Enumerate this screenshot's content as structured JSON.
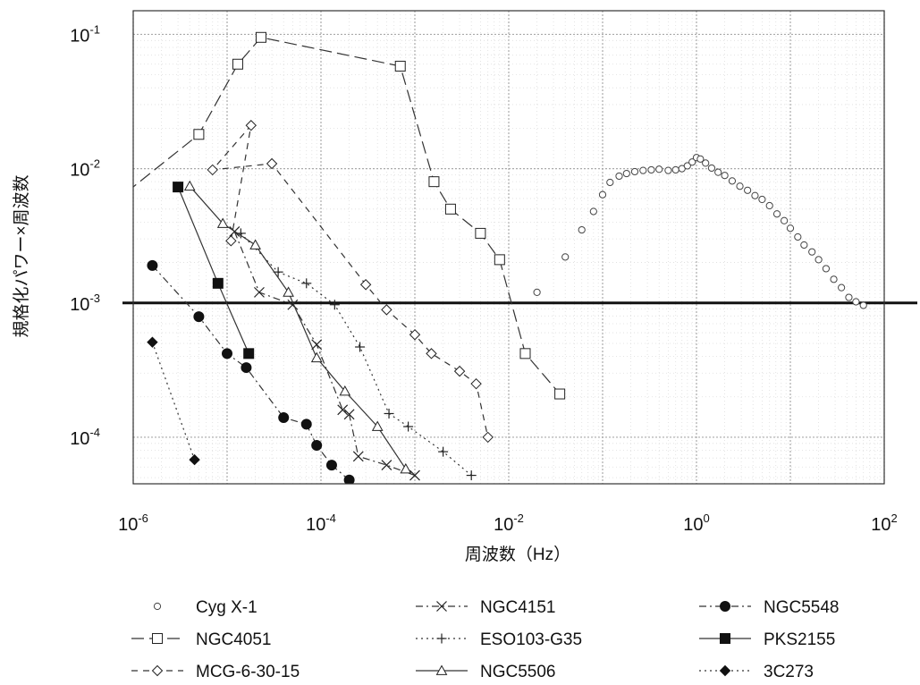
{
  "chart_data": {
    "type": "scatter",
    "title": "",
    "xlabel": "周波数（Hz）",
    "ylabel": "規格化パワー×周波数",
    "xscale": "log",
    "yscale": "log",
    "xlim": [
      1e-06,
      100
    ],
    "ylim": [
      4.5e-05,
      0.15
    ],
    "grid": true,
    "legend_position": "bottom",
    "reference_line": {
      "y": 0.001
    },
    "x_ticks": [
      {
        "value": 1e-06,
        "base": "10",
        "exp": "-6"
      },
      {
        "value": 0.0001,
        "base": "10",
        "exp": "-4"
      },
      {
        "value": 0.01,
        "base": "10",
        "exp": "-2"
      },
      {
        "value": 1,
        "base": "10",
        "exp": "0"
      },
      {
        "value": 100,
        "base": "10",
        "exp": "2"
      }
    ],
    "y_ticks": [
      {
        "value": 0.1,
        "base": "10",
        "exp": "-1"
      },
      {
        "value": 0.01,
        "base": "10",
        "exp": "-2"
      },
      {
        "value": 0.001,
        "base": "10",
        "exp": "-3"
      },
      {
        "value": 0.0001,
        "base": "10",
        "exp": "-4"
      }
    ],
    "series": [
      {
        "name": "Cyg X-1",
        "marker": "circle-open-small",
        "line": "none",
        "x": [
          0.02,
          0.04,
          0.06,
          0.08,
          0.1,
          0.12,
          0.15,
          0.18,
          0.22,
          0.27,
          0.33,
          0.4,
          0.5,
          0.6,
          0.7,
          0.8,
          0.9,
          1.0,
          1.1,
          1.25,
          1.45,
          1.7,
          2.0,
          2.4,
          2.9,
          3.5,
          4.2,
          5.0,
          6.0,
          7.2,
          8.6,
          10,
          12,
          14,
          17,
          20,
          24,
          29,
          35,
          42,
          50,
          60
        ],
        "y": [
          0.0012,
          0.0022,
          0.0035,
          0.0048,
          0.0064,
          0.0079,
          0.0088,
          0.0092,
          0.0095,
          0.0097,
          0.0098,
          0.0099,
          0.0097,
          0.0098,
          0.01,
          0.0105,
          0.0112,
          0.0121,
          0.0118,
          0.011,
          0.0101,
          0.0094,
          0.0089,
          0.0081,
          0.0074,
          0.0069,
          0.0063,
          0.0059,
          0.0053,
          0.0046,
          0.0041,
          0.0036,
          0.0031,
          0.0027,
          0.0024,
          0.0021,
          0.0018,
          0.0015,
          0.0013,
          0.0011,
          0.00102,
          0.00096
        ]
      },
      {
        "name": "NGC4051",
        "marker": "square-open",
        "line": "longdash",
        "x": [
          6e-07,
          3e-06,
          5e-06,
          1.3e-05,
          1.7e-05,
          6e-05,
          0.0002,
          0.0007,
          0.0035
        ],
        "y": [
          0.0055,
          0.018,
          0.06,
          0.095,
          0.058,
          0.008,
          0.005,
          0.0033,
          0.00021
        ],
        "segments": [
          {
            "x": [
              6e-07,
              3e-06,
              5e-06,
              1.3e-05
            ],
            "y": [
              0.0055,
              0.018,
              0.06,
              0.095
            ]
          },
          {
            "x": [
              1.3e-05,
              1.7e-05,
              6e-05,
              0.0002,
              0.0035
            ],
            "y": [
              0.095,
              0.058,
              0.008,
              0.005,
              0.00021
            ]
          }
        ],
        "points_x": [
          6e-07,
          5e-06,
          1.3e-05,
          2.3e-05,
          0.0007,
          0.0016,
          0.0024,
          0.005,
          0.008,
          0.015,
          0.035
        ],
        "points_y": [
          0.0055,
          0.018,
          0.06,
          0.095,
          0.058,
          0.008,
          0.005,
          0.0033,
          0.0021,
          0.00042,
          0.00021
        ]
      },
      {
        "name": "MCG-6-30-15",
        "marker": "diamond-open",
        "line": "dash",
        "x": [
          1.1e-05,
          4e-06,
          9e-06,
          3e-05,
          0.0003,
          0.0004,
          0.0005,
          0.0007,
          0.001,
          0.0014
        ],
        "y": [
          0.021,
          0.0098,
          0.0056,
          0.0109,
          0.00137,
          0.00102,
          0.00089,
          0.00065,
          0.00038,
          0.00025
        ],
        "points_x": [
          1.1e-05,
          1.8e-05,
          7e-06,
          3e-05,
          0.0003,
          0.0005,
          0.001,
          0.0015,
          0.003,
          0.0045,
          0.006
        ],
        "points_y": [
          0.0029,
          0.021,
          0.0098,
          0.0109,
          0.00137,
          0.00089,
          0.00058,
          0.00042,
          0.00031,
          0.00025,
          0.0001
        ]
      },
      {
        "name": "NGC4151",
        "marker": "x",
        "line": "dashdot",
        "x": [
          1.1e-06,
          2.2e-06,
          4.4e-06,
          1e-05,
          4.4e-05,
          6.4e-05,
          0.00012,
          0.00022,
          0.0004
        ],
        "y": [
          0.0034,
          0.0012,
          0.00097,
          0.00049,
          0.00016,
          0.000148,
          7.2e-05,
          6.2e-05,
          5.2e-05
        ],
        "points_x": [
          1.2e-05,
          2.2e-05,
          5e-05,
          9e-05,
          0.00017,
          0.0002,
          0.00025,
          0.0005,
          0.001
        ],
        "points_y": [
          0.0034,
          0.0012,
          0.00097,
          0.00049,
          0.00016,
          0.000148,
          7.2e-05,
          6.2e-05,
          5.2e-05
        ]
      },
      {
        "name": "ESO103-G35",
        "marker": "plus",
        "line": "dot",
        "x": [
          1.2e-05,
          2e-05,
          3e-05,
          6e-05,
          9e-05,
          0.00015,
          0.0002,
          0.00028,
          0.0004
        ],
        "y": [
          0.0033,
          0.0017,
          0.0014,
          0.00097,
          0.00047,
          0.00015,
          0.00012,
          5.8e-05,
          5.2e-05
        ],
        "points_x": [
          1.4e-05,
          3.5e-05,
          7e-05,
          0.00014,
          0.00026,
          0.00053,
          0.00085,
          0.002,
          0.004
        ],
        "points_y": [
          0.0033,
          0.0017,
          0.0014,
          0.00097,
          0.00047,
          0.00015,
          0.00012,
          7.8e-05,
          5.2e-05
        ]
      },
      {
        "name": "NGC5506",
        "marker": "triangle-open",
        "line": "solid",
        "points_x": [
          4e-06,
          9e-06,
          2e-05,
          4.5e-05,
          9e-05,
          0.00018,
          0.0004,
          0.0008
        ],
        "points_y": [
          0.0074,
          0.0039,
          0.0027,
          0.0012,
          0.00039,
          0.00022,
          0.00012,
          5.8e-05
        ]
      },
      {
        "name": "NGC5548",
        "marker": "circle-filled",
        "line": "dashdot",
        "points_x": [
          1.6e-06,
          5e-06,
          1e-05,
          1.6e-05,
          4e-05,
          7e-05,
          9e-05,
          0.00013,
          0.0002
        ],
        "points_y": [
          0.0019,
          0.00079,
          0.00042,
          0.00033,
          0.00014,
          0.000125,
          8.7e-05,
          6.2e-05,
          4.8e-05
        ]
      },
      {
        "name": "PKS2155",
        "marker": "square-filled",
        "line": "solid",
        "points_x": [
          3e-06,
          8e-06,
          1.7e-05
        ],
        "points_y": [
          0.0073,
          0.0014,
          0.00042
        ]
      },
      {
        "name": "3C273",
        "marker": "diamond-filled",
        "line": "dot",
        "points_x": [
          1.6e-06,
          4.5e-06
        ],
        "points_y": [
          0.00051,
          6.8e-05
        ]
      }
    ]
  },
  "legend": {
    "items": [
      {
        "label": "Cyg X-1",
        "marker": "circle-open-small",
        "line": "none",
        "col": 0,
        "row": 0
      },
      {
        "label": "NGC4051",
        "marker": "square-open",
        "line": "longdash",
        "col": 0,
        "row": 1
      },
      {
        "label": "MCG-6-30-15",
        "marker": "diamond-open",
        "line": "dash",
        "col": 0,
        "row": 2
      },
      {
        "label": "NGC4151",
        "marker": "x",
        "line": "dashdot",
        "col": 1,
        "row": 0
      },
      {
        "label": "ESO103-G35",
        "marker": "plus",
        "line": "dot",
        "col": 1,
        "row": 1
      },
      {
        "label": "NGC5506",
        "marker": "triangle-open",
        "line": "solid",
        "col": 1,
        "row": 2
      },
      {
        "label": "NGC5548",
        "marker": "circle-filled",
        "line": "dashdot",
        "col": 2,
        "row": 0
      },
      {
        "label": "PKS2155",
        "marker": "square-filled",
        "line": "solid",
        "col": 2,
        "row": 1
      },
      {
        "label": "3C273",
        "marker": "diamond-filled",
        "line": "dot",
        "col": 2,
        "row": 2
      }
    ]
  }
}
